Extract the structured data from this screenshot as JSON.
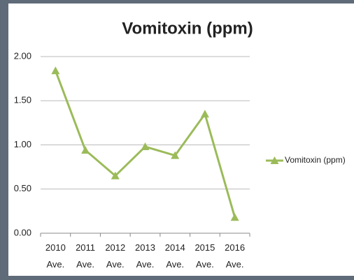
{
  "chart_data": {
    "type": "line",
    "title": "Vomitoxin (ppm)",
    "categories": [
      "2010 Ave.",
      "2011 Ave.",
      "2012 Ave.",
      "2013 Ave.",
      "2014 Ave.",
      "2015 Ave.",
      "2016 Ave."
    ],
    "series": [
      {
        "name": "Vomitoxin (ppm)",
        "color": "#9bbb59",
        "values": [
          1.84,
          0.94,
          0.65,
          0.98,
          0.88,
          1.35,
          0.18
        ]
      }
    ],
    "ylim": [
      0,
      2
    ],
    "yticks": [
      {
        "value": 0,
        "label": "0.00"
      },
      {
        "value": 0.5,
        "label": "0.50"
      },
      {
        "value": 1,
        "label": "1.00"
      },
      {
        "value": 1.5,
        "label": "1.50"
      },
      {
        "value": 2,
        "label": "2.00"
      }
    ],
    "grid": true,
    "legend": "right"
  }
}
